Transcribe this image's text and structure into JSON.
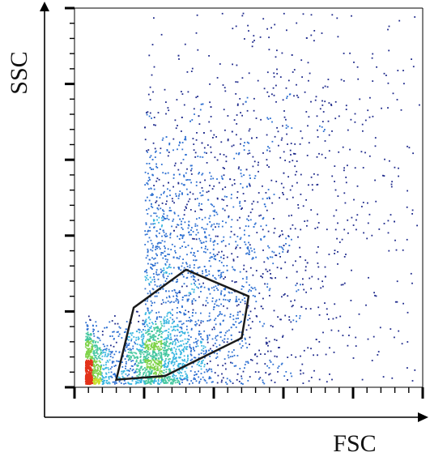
{
  "chart_data": {
    "type": "scatter",
    "title": "",
    "xlabel": "FSC",
    "ylabel": "SSC",
    "xlim": [
      0,
      1
    ],
    "ylim": [
      0,
      1
    ],
    "grid": false,
    "legend": "none",
    "axis_ticks": {
      "x_major": [
        0,
        0.2,
        0.4,
        0.6,
        0.8,
        1.0
      ],
      "x_minor_per_major": 4,
      "y_major": [
        0,
        0.2,
        0.4,
        0.6,
        0.8,
        1.0
      ],
      "y_minor_per_major": 4
    },
    "density_colormap": [
      "#1e2a8c",
      "#2c6fd1",
      "#38b6e0",
      "#45c7a0",
      "#7fd34a",
      "#c8e02a",
      "#f2a21c",
      "#e3321a"
    ],
    "populations": [
      {
        "kind": "debris",
        "center": [
          0.03,
          0.05
        ],
        "spread": [
          0.04,
          0.05
        ],
        "weight": 0.18
      },
      {
        "kind": "cells",
        "center": [
          0.22,
          0.08
        ],
        "spread": [
          0.06,
          0.05
        ],
        "weight": 0.22
      },
      {
        "kind": "diffuse",
        "center": [
          0.2,
          0.28
        ],
        "spread": [
          0.2,
          0.25
        ],
        "weight": 0.45
      },
      {
        "kind": "sparse",
        "center": [
          0.45,
          0.6
        ],
        "spread": [
          0.35,
          0.35
        ],
        "weight": 0.15
      }
    ],
    "gate": {
      "vertices": [
        [
          0.12,
          0.02
        ],
        [
          0.26,
          0.03
        ],
        [
          0.48,
          0.13
        ],
        [
          0.5,
          0.24
        ],
        [
          0.32,
          0.31
        ],
        [
          0.17,
          0.21
        ]
      ],
      "color": "#1a1a1a"
    }
  }
}
